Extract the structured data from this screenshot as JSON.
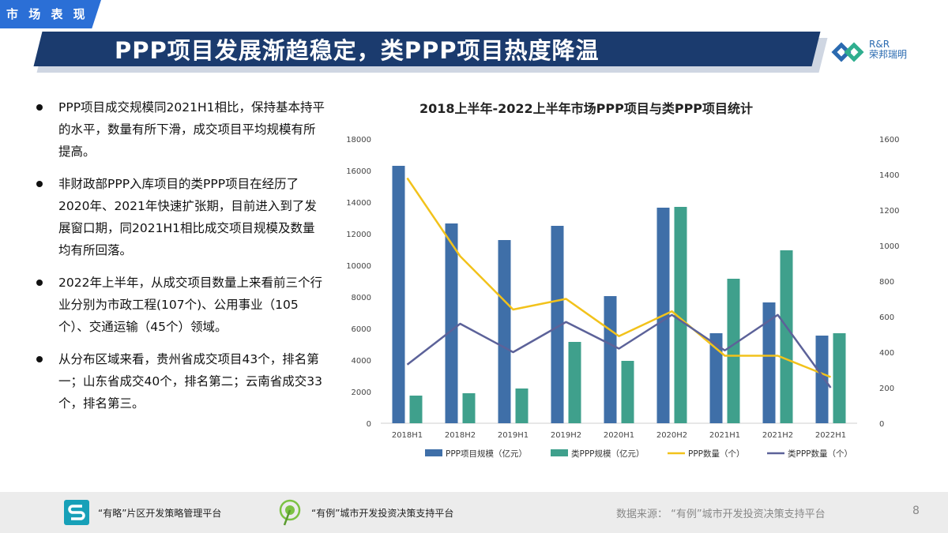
{
  "section_tab": "市 场 表 现",
  "slide_title": "PPP项目发展渐趋稳定，类PPP项目热度降温",
  "logo": {
    "line1": "R&R",
    "line2": "荣邦瑞明"
  },
  "bullets": [
    "PPP项目成交规模同2021H1相比，保持基本持平的水平，数量有所下滑，成交项目平均规模有所提高。",
    "非财政部PPP入库项目的类PPP项目在经历了2020年、2021年快速扩张期，目前进入到了发展窗口期，同2021H1相比成交项目规模及数量均有所回落。",
    "2022年上半年，从成交项目数量上来看前三个行业分别为市政工程(107个)、公用事业（105个）、交通运输（45个）领域。",
    "从分布区域来看，贵州省成交项目43个，排名第一；山东省成交40个，排名第二；云南省成交33个，排名第三。"
  ],
  "chart_data": {
    "type": "bar",
    "title": "2018上半年-2022上半年市场PPP项目与类PPP项目统计",
    "categories": [
      "2018H1",
      "2018H2",
      "2019H1",
      "2019H2",
      "2020H1",
      "2020H2",
      "2021H1",
      "2021H2",
      "2022H1"
    ],
    "y_left": {
      "min": 0,
      "max": 18000,
      "ticks": [
        "0",
        "2000",
        "4000",
        "6000",
        "8000",
        "10000",
        "12000",
        "14000",
        "16000",
        "18000"
      ]
    },
    "y_right": {
      "min": 0,
      "max": 1600,
      "ticks": [
        "0",
        "200",
        "400",
        "600",
        "800",
        "1000",
        "1200",
        "1400",
        "1600"
      ]
    },
    "grid": false,
    "legend_position": "bottom",
    "series": [
      {
        "name": "PPP项目规模（亿元）",
        "kind": "bar",
        "axis": "left",
        "color": "#3f6fa8",
        "values": [
          16300,
          12650,
          11600,
          12500,
          8050,
          13650,
          5700,
          7650,
          5550
        ]
      },
      {
        "name": "类PPP规模（亿元）",
        "kind": "bar",
        "axis": "left",
        "color": "#3fa08c",
        "values": [
          1750,
          1900,
          2200,
          5150,
          3950,
          13700,
          9150,
          10950,
          5700
        ]
      },
      {
        "name": "PPP数量（个）",
        "kind": "line",
        "axis": "right",
        "color": "#f2c21b",
        "values": [
          1380,
          940,
          640,
          700,
          490,
          630,
          380,
          380,
          260
        ]
      },
      {
        "name": "类PPP数量（个）",
        "kind": "line",
        "axis": "right",
        "color": "#5c6299",
        "values": [
          330,
          560,
          400,
          570,
          420,
          610,
          410,
          610,
          200
        ]
      }
    ]
  },
  "footer": {
    "platform1": "“有略”片区开发策略管理平台",
    "platform2": "“有例”城市开发投资决策支持平台",
    "source": "数据来源：  “有例”城市开发投资决策支持平台",
    "page": "8"
  }
}
